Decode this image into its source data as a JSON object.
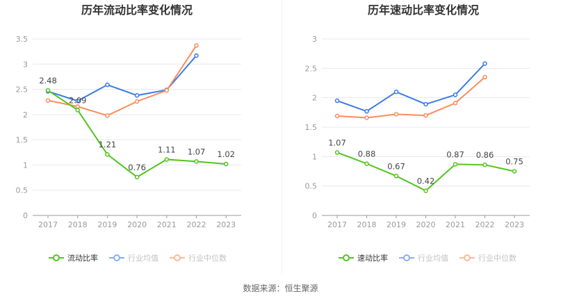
{
  "source": "数据来源：恒生聚源",
  "colors": {
    "company": "#52c41a",
    "industry_avg": "#3b7ae8",
    "industry_median": "#fa8c5a",
    "grid": "#e6e8f2",
    "axis": "#999999"
  },
  "chart_data": [
    {
      "type": "line",
      "title": "历年流动比率变化情况",
      "categories": [
        "2017",
        "2018",
        "2019",
        "2020",
        "2021",
        "2022",
        "2023"
      ],
      "ylim": [
        0,
        3.5
      ],
      "yticks": [
        "0",
        "0.5",
        "1",
        "1.5",
        "2",
        "2.5",
        "3",
        "3.5"
      ],
      "grid": true,
      "legend_position": "bottom",
      "series": [
        {
          "name": "流动比率",
          "values": [
            2.48,
            2.09,
            1.21,
            0.76,
            1.11,
            1.07,
            1.02
          ],
          "labels": [
            "2.48",
            "2.09",
            "1.21",
            "0.76",
            "1.11",
            "1.07",
            "1.02"
          ]
        },
        {
          "name": "行业均值",
          "values": [
            2.46,
            2.27,
            2.59,
            2.38,
            2.49,
            3.17,
            null
          ]
        },
        {
          "name": "行业中位数",
          "values": [
            2.28,
            2.16,
            1.98,
            2.26,
            2.48,
            3.37,
            null
          ]
        }
      ]
    },
    {
      "type": "line",
      "title": "历年速动比率变化情况",
      "categories": [
        "2017",
        "2018",
        "2019",
        "2020",
        "2021",
        "2022",
        "2023"
      ],
      "ylim": [
        0,
        3
      ],
      "yticks": [
        "0",
        "0.5",
        "1",
        "1.5",
        "2",
        "2.5",
        "3"
      ],
      "grid": true,
      "legend_position": "bottom",
      "series": [
        {
          "name": "速动比率",
          "values": [
            1.07,
            0.88,
            0.67,
            0.42,
            0.87,
            0.86,
            0.75
          ],
          "labels": [
            "1.07",
            "0.88",
            "0.67",
            "0.42",
            "0.87",
            "0.86",
            "0.75"
          ]
        },
        {
          "name": "行业均值",
          "values": [
            1.95,
            1.77,
            2.1,
            1.89,
            2.05,
            2.58,
            null
          ]
        },
        {
          "name": "行业中位数",
          "values": [
            1.69,
            1.66,
            1.72,
            1.7,
            1.91,
            2.35,
            null
          ]
        }
      ]
    }
  ]
}
